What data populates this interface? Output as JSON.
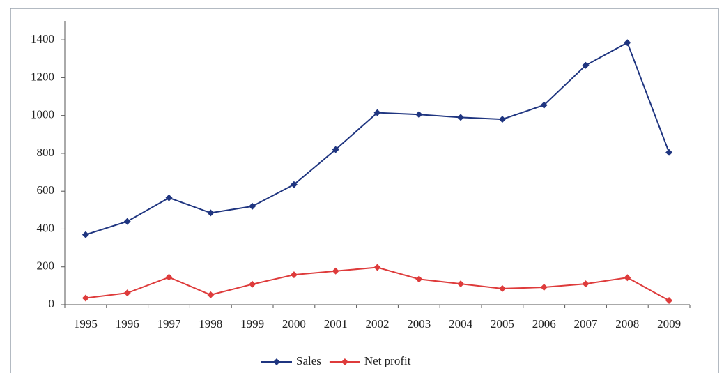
{
  "chart_data": {
    "type": "line",
    "categories": [
      "1995",
      "1996",
      "1997",
      "1998",
      "1999",
      "2000",
      "2001",
      "2002",
      "2003",
      "2004",
      "2005",
      "2006",
      "2007",
      "2008",
      "2009"
    ],
    "series": [
      {
        "name": "Sales",
        "color": "#1f3580",
        "values": [
          370,
          440,
          565,
          485,
          520,
          635,
          820,
          1015,
          1005,
          990,
          980,
          1055,
          1265,
          1385,
          805
        ]
      },
      {
        "name": "Net profit",
        "color": "#de3b3b",
        "values": [
          35,
          62,
          145,
          52,
          108,
          158,
          178,
          197,
          135,
          110,
          85,
          92,
          110,
          143,
          22
        ]
      }
    ],
    "ylim": [
      0,
      1500
    ],
    "yticks": [
      0,
      200,
      400,
      600,
      800,
      1000,
      1200,
      1400
    ],
    "legend": "bottom"
  }
}
